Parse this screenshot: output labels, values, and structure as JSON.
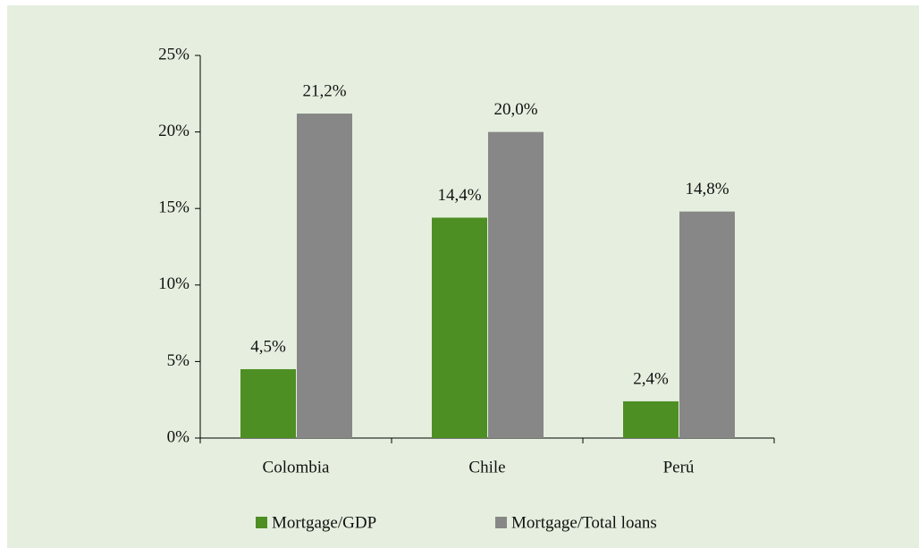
{
  "chart_data": {
    "type": "bar",
    "categories": [
      "Colombia",
      "Chile",
      "Perú"
    ],
    "series": [
      {
        "name": "Mortgage/GDP",
        "color": "#4e8f24",
        "values": [
          4.5,
          14.4,
          2.4
        ],
        "value_labels": [
          "4,5%",
          "14,4%",
          "2,4%"
        ]
      },
      {
        "name": "Mortgage/Total loans",
        "color": "#878787",
        "values": [
          21.2,
          20.0,
          14.8
        ],
        "value_labels": [
          "21,2%",
          "20,0%",
          "14,8%"
        ]
      }
    ],
    "ylim": [
      0,
      25
    ],
    "yticks": [
      {
        "value": 0,
        "label": "0%"
      },
      {
        "value": 5,
        "label": "5%"
      },
      {
        "value": 10,
        "label": "10%"
      },
      {
        "value": 15,
        "label": "15%"
      },
      {
        "value": 20,
        "label": "20%"
      },
      {
        "value": 25,
        "label": "25%"
      }
    ],
    "grid": false,
    "legend": "bottom"
  }
}
